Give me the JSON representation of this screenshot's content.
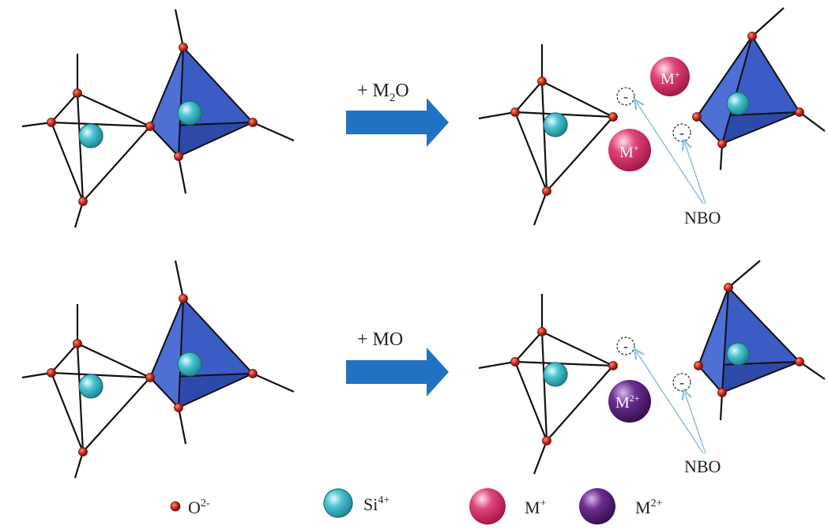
{
  "reactions": [
    {
      "reagent_main": "+ M",
      "reagent_sub": "2",
      "reagent_tail": "O",
      "ion_label": "M",
      "ion_sup": "+",
      "nbo_label": "NBO",
      "charge": "-"
    },
    {
      "reagent_main": "+ MO",
      "reagent_sub": "",
      "reagent_tail": "",
      "ion_label": "M",
      "ion_sup": "2+",
      "nbo_label": "NBO",
      "charge": "-"
    }
  ],
  "legend": [
    {
      "symbol": "O",
      "sup": "2-"
    },
    {
      "symbol": "Si",
      "sup": "4+"
    },
    {
      "symbol": "M",
      "sup": "+"
    },
    {
      "symbol": "M",
      "sup": "2+"
    }
  ],
  "colors": {
    "oxygen": "#c0281d",
    "silicon": "#49c3cf",
    "monovalent_ion": "#e0457c",
    "divalent_ion": "#6d2e8f",
    "tetrahedron": "#3b5cc4",
    "arrow": "#1f73c2",
    "nbo_pointer": "#8cc0e0"
  }
}
